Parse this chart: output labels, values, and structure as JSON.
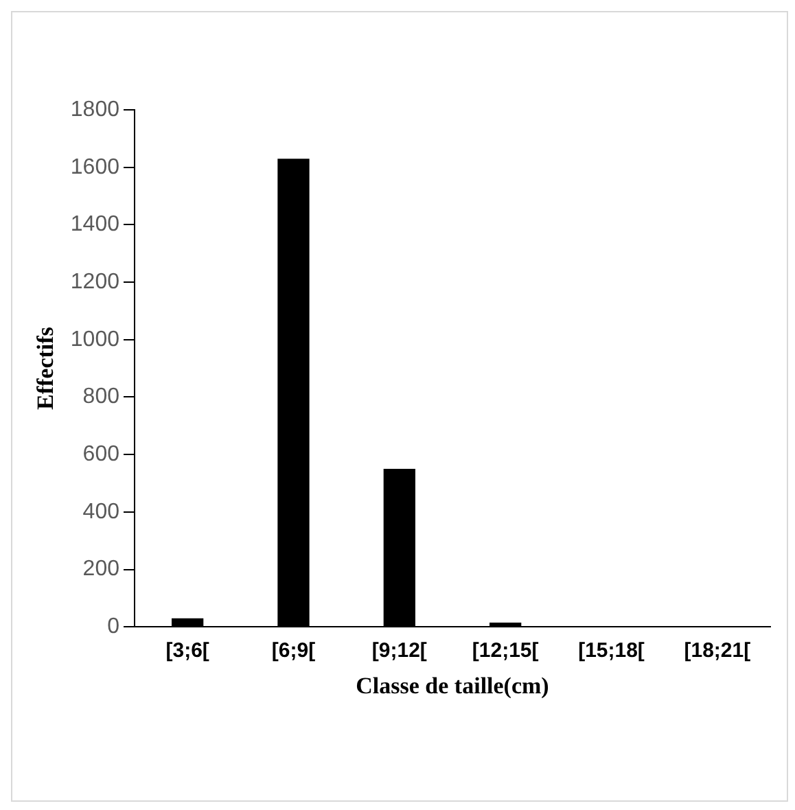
{
  "chart_data": {
    "type": "bar",
    "xlabel": "Classe de taille(cm)",
    "ylabel": "Effectifs",
    "categories": [
      "[3;6[",
      "[6;9[",
      "[9;12[",
      "[12;15[",
      "[15;18[",
      "[18;21["
    ],
    "values": [
      30,
      1630,
      550,
      15,
      0,
      0
    ],
    "color": "#000000",
    "ylim": [
      0,
      1800
    ],
    "yticks": [
      0,
      200,
      400,
      600,
      800,
      1000,
      1200,
      1400,
      1600,
      1800
    ],
    "grid": false,
    "legend": false
  }
}
